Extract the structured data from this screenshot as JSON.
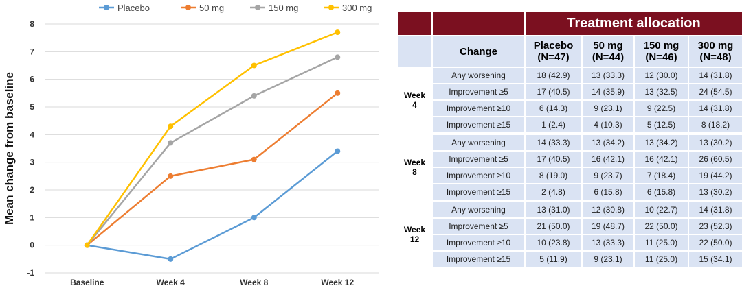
{
  "chart_data": {
    "type": "line",
    "categories": [
      "Baseline",
      "Week 4",
      "Week 8",
      "Week 12"
    ],
    "series": [
      {
        "name": "Placebo",
        "color": "#5b9bd5",
        "values": [
          0,
          -0.5,
          1.0,
          3.4
        ]
      },
      {
        "name": "50 mg",
        "color": "#ed7d31",
        "values": [
          0,
          2.5,
          3.1,
          5.5
        ]
      },
      {
        "name": "150 mg",
        "color": "#a5a5a5",
        "values": [
          0,
          3.7,
          5.4,
          6.8
        ]
      },
      {
        "name": "300 mg",
        "color": "#ffc000",
        "values": [
          0,
          4.3,
          6.5,
          7.7
        ]
      }
    ],
    "ylabel": "Mean change from baseline",
    "xlabel": "",
    "ylim": [
      -1,
      8
    ],
    "yticks": [
      "-1",
      "0",
      "1",
      "2",
      "3",
      "4",
      "5",
      "6",
      "7",
      "8"
    ],
    "grid": true,
    "legend": "top"
  },
  "table": {
    "title": "Treatment allocation",
    "headers": [
      "Change",
      "Placebo (N=47)",
      "50 mg (N=44)",
      "150 mg (N=46)",
      "300 mg (N=48)"
    ],
    "header_lines": [
      [
        "Change"
      ],
      [
        "Placebo",
        "(N=47)"
      ],
      [
        "50 mg",
        "(N=44)"
      ],
      [
        "150 mg",
        "(N=46)"
      ],
      [
        "300 mg",
        "(N=48)"
      ]
    ],
    "groups": [
      {
        "label_lines": [
          "Week",
          "4"
        ],
        "rows": [
          [
            "Any worsening",
            "18 (42.9)",
            "13 (33.3)",
            "12 (30.0)",
            "14 (31.8)"
          ],
          [
            "Improvement ≥5",
            "17 (40.5)",
            "14 (35.9)",
            "13 (32.5)",
            "24 (54.5)"
          ],
          [
            "Improvement ≥10",
            "6 (14.3)",
            "9 (23.1)",
            "9 (22.5)",
            "14 (31.8)"
          ],
          [
            "Improvement ≥15",
            "1 (2.4)",
            "4 (10.3)",
            "5 (12.5)",
            "8 (18.2)"
          ]
        ]
      },
      {
        "label_lines": [
          "Week",
          "8"
        ],
        "rows": [
          [
            "Any worsening",
            "14 (33.3)",
            "13 (34.2)",
            "13 (34.2)",
            "13 (30.2)"
          ],
          [
            "Improvement ≥5",
            "17 (40.5)",
            "16 (42.1)",
            "16 (42.1)",
            "26 (60.5)"
          ],
          [
            "Improvement ≥10",
            "8 (19.0)",
            "9 (23.7)",
            "7 (18.4)",
            "19 (44.2)"
          ],
          [
            "Improvement ≥15",
            "2 (4.8)",
            "6 (15.8)",
            "6 (15.8)",
            "13 (30.2)"
          ]
        ]
      },
      {
        "label_lines": [
          "Week",
          "12"
        ],
        "rows": [
          [
            "Any worsening",
            "13 (31.0)",
            "12 (30.8)",
            "10 (22.7)",
            "14 (31.8)"
          ],
          [
            "Improvement ≥5",
            "21 (50.0)",
            "19 (48.7)",
            "22 (50.0)",
            "23 (52.3)"
          ],
          [
            "Improvement ≥10",
            "10 (23.8)",
            "13 (33.3)",
            "11 (25.0)",
            "22 (50.0)"
          ],
          [
            "Improvement ≥15",
            "5 (11.9)",
            "9 (23.1)",
            "11 (25.0)",
            "15 (34.1)"
          ]
        ]
      }
    ]
  }
}
